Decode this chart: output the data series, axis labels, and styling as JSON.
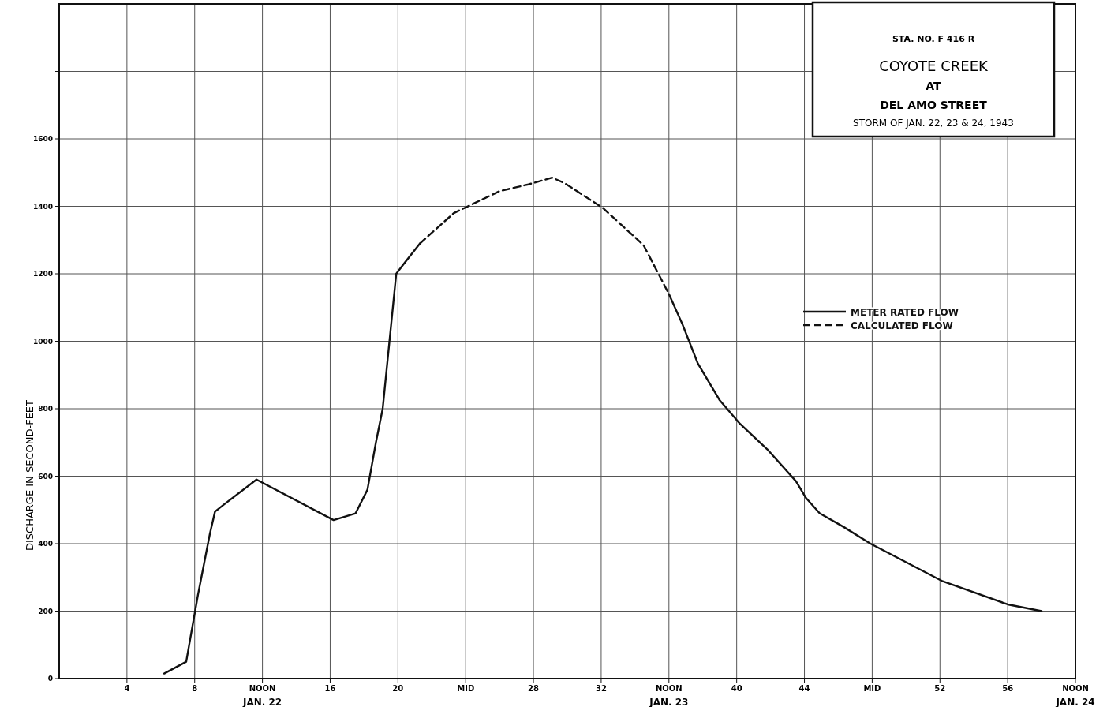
{
  "chart_data": {
    "type": "line",
    "title": "COYOTE CREEK\nAT\nDEL AMO STREET",
    "subtitle": "STORM OF JAN. 22, 23 & 24, 1943",
    "annotations": [
      "STA. NO. F 416 R"
    ],
    "ylabel": "DISCHARGE IN SECOND-FEET",
    "x": [
      6.2,
      7.5,
      8.2,
      8.9,
      9.2,
      9.7,
      11.65,
      16.2,
      17.5,
      18.2,
      18.7,
      19.1,
      19.5,
      19.9,
      20.2,
      21.3,
      23.3,
      26.0,
      27.7,
      29.1,
      29.8,
      32.1,
      34.5,
      36.0,
      36.8,
      37.7,
      39.0,
      40.2,
      41.8,
      43.5,
      44.1,
      44.9,
      46.3,
      47.9,
      52.1,
      56.0,
      58.0
    ],
    "series": [
      {
        "name": "METER RATED FLOW",
        "color": "#111111",
        "line_style": "solid",
        "values": [
          15,
          50,
          250,
          430,
          495,
          515,
          590,
          470,
          490,
          560,
          700,
          800,
          1000,
          1200,
          1220,
          1290,
          null,
          null,
          null,
          null,
          null,
          null,
          null,
          1140,
          1050,
          935,
          825,
          755,
          680,
          585,
          535,
          490,
          450,
          400,
          290,
          220,
          200
        ]
      },
      {
        "name": "CALCULATED FLOW",
        "color": "#111111",
        "line_style": "dashed",
        "values": [
          null,
          null,
          null,
          null,
          null,
          null,
          null,
          null,
          null,
          null,
          null,
          null,
          null,
          null,
          null,
          1290,
          1380,
          1445,
          1465,
          1485,
          1470,
          1395,
          1285,
          1140,
          null,
          null,
          null,
          null,
          null,
          null,
          null,
          null,
          null,
          null,
          null,
          null,
          null
        ]
      }
    ],
    "xlim": [
      0,
      60
    ],
    "xticks": [
      4,
      8,
      {
        "value": 12,
        "label": "NOON\nJAN. 22"
      },
      16,
      20,
      {
        "value": 24,
        "label": "MID"
      },
      28,
      32,
      {
        "value": 36,
        "label": "NOON\nJAN. 23"
      },
      40,
      44,
      {
        "value": 48,
        "label": "MID"
      },
      52,
      56,
      {
        "value": 60,
        "label": "NOON\nJAN. 24"
      }
    ],
    "ylim": [
      0,
      2000
    ],
    "yticks": [
      0,
      200,
      400,
      600,
      800,
      1000,
      1200,
      1400,
      1600,
      {
        "value": 1800,
        "label": null
      }
    ],
    "grid": true,
    "legend": "right",
    "marker": "none"
  }
}
